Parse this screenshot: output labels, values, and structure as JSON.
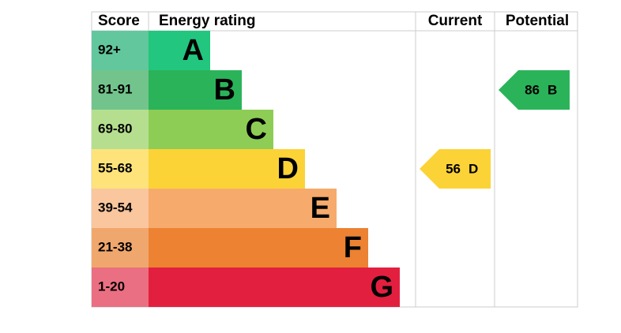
{
  "header": {
    "score": "Score",
    "rating": "Energy rating",
    "current": "Current",
    "potential": "Potential"
  },
  "bands": [
    {
      "score": "92+",
      "letter": "A",
      "color": "#22c67e",
      "score_color": "#62c79d"
    },
    {
      "score": "81-91",
      "letter": "B",
      "color": "#2bb35a",
      "score_color": "#72c48c"
    },
    {
      "score": "69-80",
      "letter": "C",
      "color": "#8dcd55",
      "score_color": "#b5df8f"
    },
    {
      "score": "55-68",
      "letter": "D",
      "color": "#fbd337",
      "score_color": "#fde37a"
    },
    {
      "score": "39-54",
      "letter": "E",
      "color": "#f6aa6b",
      "score_color": "#f9c69d"
    },
    {
      "score": "21-38",
      "letter": "F",
      "color": "#ec8232",
      "score_color": "#f0a76d"
    },
    {
      "score": "1-20",
      "letter": "G",
      "color": "#e31f3f",
      "score_color": "#ea6f82"
    }
  ],
  "current": {
    "value": 56,
    "letter": "D"
  },
  "potential": {
    "value": 86,
    "letter": "B"
  }
}
